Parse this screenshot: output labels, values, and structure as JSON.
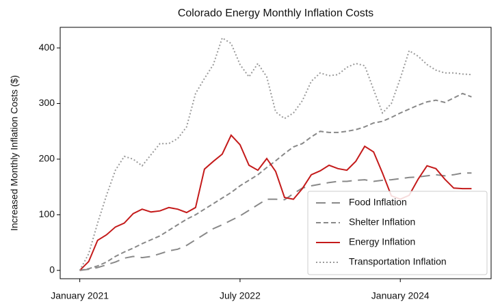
{
  "chart_data": {
    "type": "line",
    "title": "Colorado Energy Monthly Inflation Costs",
    "ylabel": "Increased Monthly Inflation Costs ($)",
    "x": [
      "2021-01",
      "2021-02",
      "2021-03",
      "2021-04",
      "2021-05",
      "2021-06",
      "2021-07",
      "2021-08",
      "2021-09",
      "2021-10",
      "2021-11",
      "2021-12",
      "2022-01",
      "2022-02",
      "2022-03",
      "2022-04",
      "2022-05",
      "2022-06",
      "2022-07",
      "2022-08",
      "2022-09",
      "2022-10",
      "2022-11",
      "2022-12",
      "2023-01",
      "2023-02",
      "2023-03",
      "2023-04",
      "2023-05",
      "2023-06",
      "2023-07",
      "2023-08",
      "2023-09",
      "2023-10",
      "2023-11",
      "2023-12",
      "2024-01",
      "2024-02",
      "2024-03",
      "2024-04",
      "2024-05",
      "2024-06",
      "2024-07",
      "2024-08",
      "2024-09"
    ],
    "xlim": [
      "2021-01",
      "2024-09"
    ],
    "xticks": [
      {
        "value": "2021-01",
        "label": "January 2021"
      },
      {
        "value": "2022-07",
        "label": "July 2022"
      },
      {
        "value": "2024-01",
        "label": "January 2024"
      }
    ],
    "ylim": [
      -15,
      437
    ],
    "yticks": [
      0,
      100,
      200,
      300,
      400
    ],
    "legend": "lower right",
    "series": [
      {
        "name": "Food Inflation",
        "color": "#888888",
        "linestyle": "longdash",
        "values": [
          0,
          2,
          5,
          10,
          15,
          22,
          25,
          23,
          25,
          30,
          35,
          38,
          45,
          55,
          65,
          75,
          82,
          90,
          98,
          108,
          118,
          128,
          128,
          127,
          138,
          148,
          152,
          155,
          158,
          160,
          160,
          162,
          163,
          160,
          162,
          163,
          165,
          167,
          168,
          170,
          172,
          170,
          172,
          175,
          175
        ]
      },
      {
        "name": "Shelter Inflation",
        "color": "#888888",
        "linestyle": "dashed",
        "values": [
          0,
          3,
          8,
          15,
          25,
          33,
          40,
          48,
          55,
          62,
          72,
          82,
          92,
          100,
          110,
          120,
          130,
          140,
          152,
          162,
          172,
          185,
          197,
          210,
          222,
          228,
          240,
          250,
          248,
          248,
          250,
          253,
          258,
          265,
          268,
          275,
          283,
          290,
          297,
          303,
          306,
          302,
          310,
          318,
          312
        ]
      },
      {
        "name": "Energy Inflation",
        "color": "#c41a1a",
        "linestyle": "solid",
        "values": [
          0,
          16,
          54,
          64,
          78,
          85,
          102,
          110,
          105,
          107,
          113,
          110,
          104,
          113,
          182,
          196,
          209,
          243,
          226,
          189,
          180,
          201,
          178,
          131,
          128,
          147,
          172,
          179,
          189,
          183,
          180,
          196,
          223,
          213,
          175,
          134,
          128,
          135,
          164,
          188,
          183,
          164,
          148,
          147,
          147
        ]
      },
      {
        "name": "Transportation Inflation",
        "color": "#999999",
        "linestyle": "dotted",
        "values": [
          0,
          30,
          85,
          135,
          180,
          205,
          200,
          188,
          208,
          228,
          228,
          237,
          258,
          318,
          345,
          370,
          418,
          408,
          370,
          348,
          372,
          348,
          285,
          273,
          283,
          305,
          340,
          355,
          350,
          352,
          365,
          372,
          368,
          325,
          283,
          300,
          345,
          395,
          385,
          370,
          360,
          355,
          355,
          353,
          352
        ]
      }
    ]
  }
}
